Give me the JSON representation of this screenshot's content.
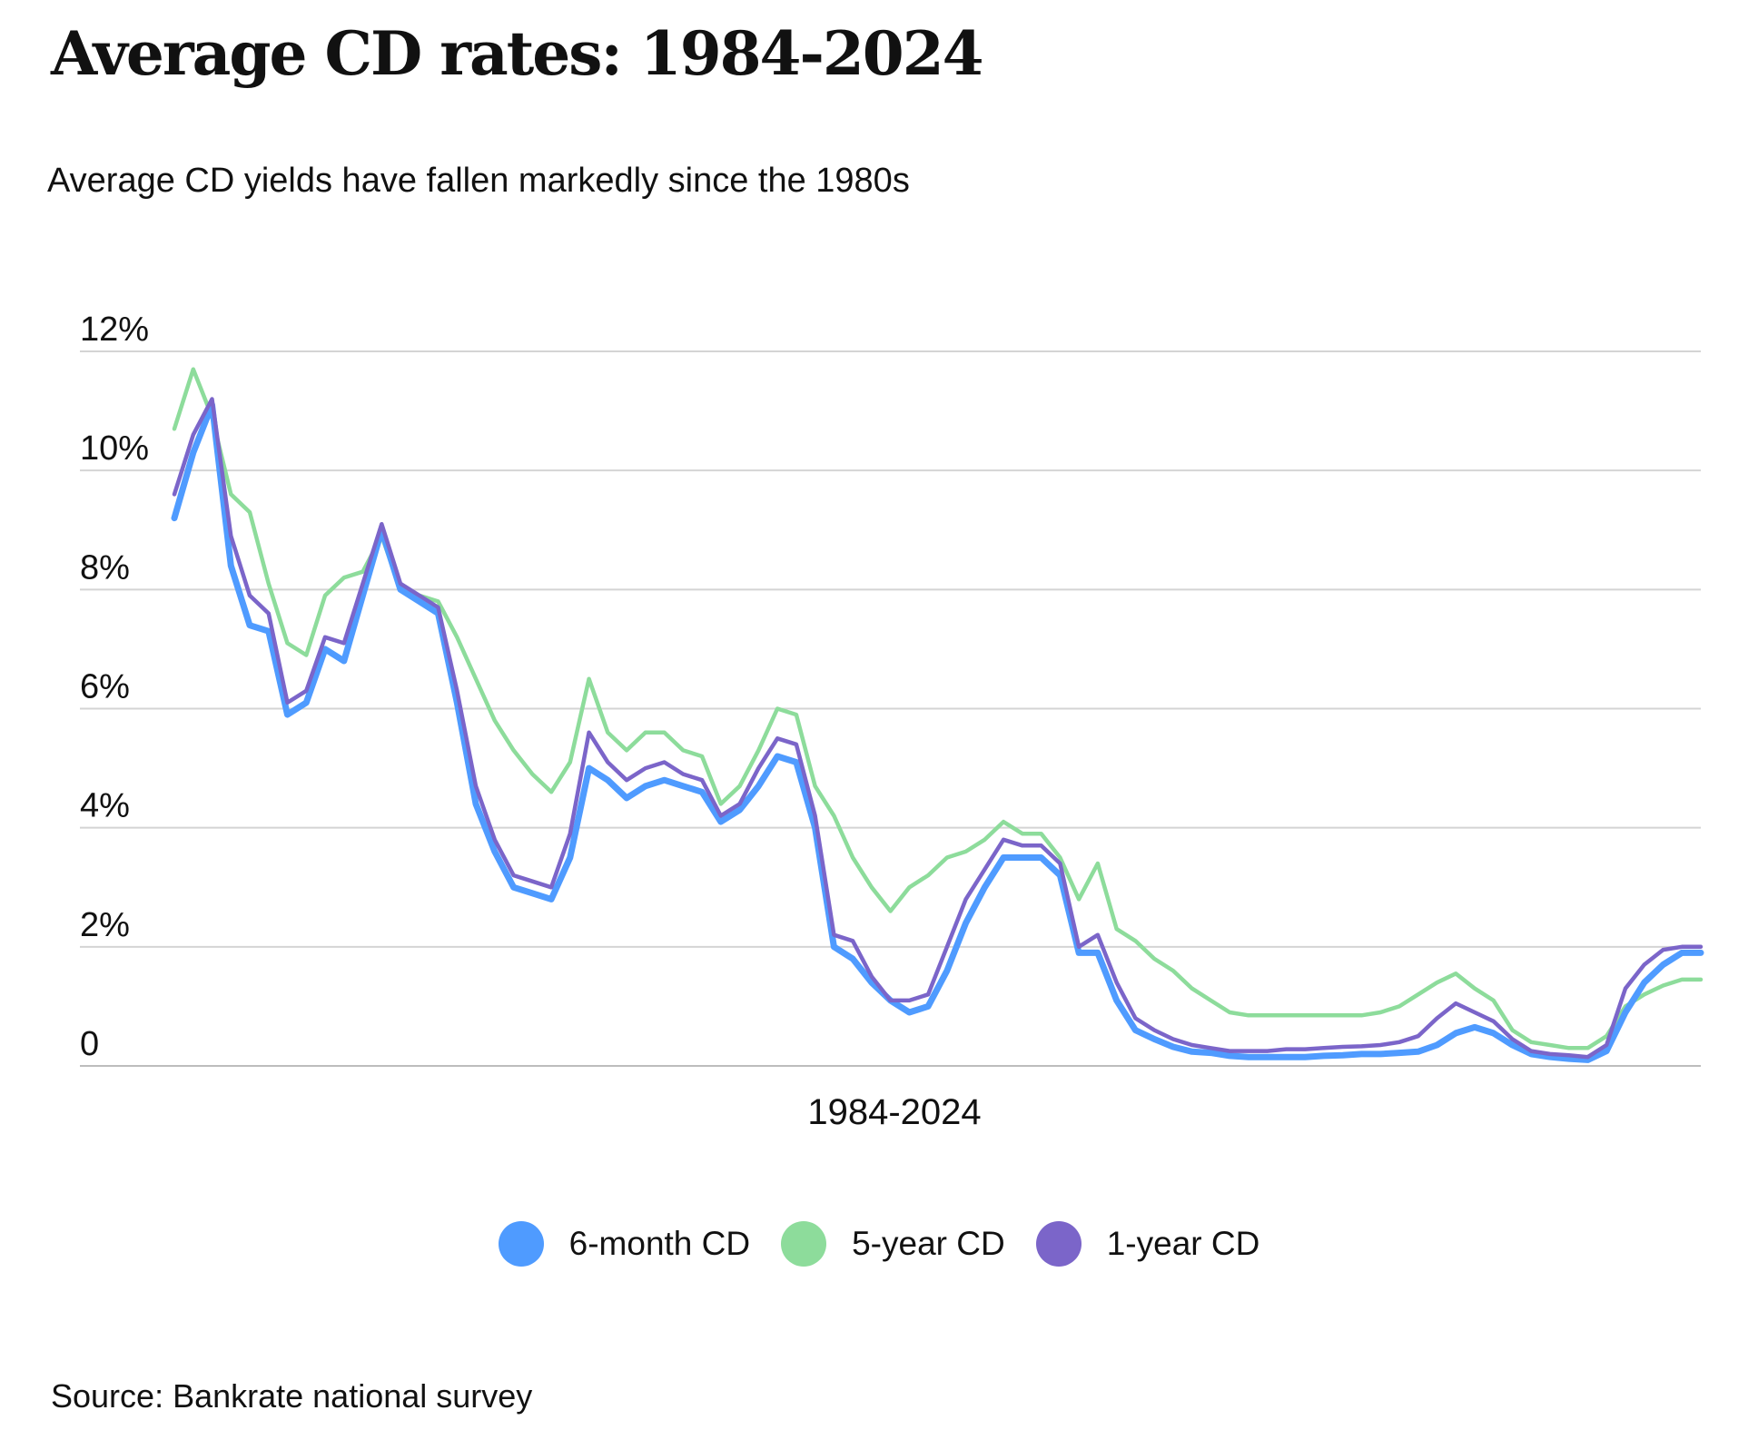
{
  "header": {
    "title": "Average CD rates: 1984-2024",
    "subtitle": "Average CD yields have fallen markedly since the 1980s"
  },
  "footer": {
    "source": "Source: Bankrate national survey"
  },
  "chart_data": {
    "type": "line",
    "title": "Average CD rates: 1984-2024",
    "subtitle": "Average CD yields have fallen markedly since the 1980s",
    "xlabel": "1984-2024",
    "ylabel": "",
    "x": [
      1984.0,
      1984.5,
      1985.0,
      1985.5,
      1986.0,
      1986.5,
      1987.0,
      1987.5,
      1988.0,
      1988.5,
      1989.0,
      1989.5,
      1990.0,
      1990.5,
      1991.0,
      1991.5,
      1992.0,
      1992.5,
      1993.0,
      1993.5,
      1994.0,
      1994.5,
      1995.0,
      1995.5,
      1996.0,
      1996.5,
      1997.0,
      1997.5,
      1998.0,
      1998.5,
      1999.0,
      1999.5,
      2000.0,
      2000.5,
      2001.0,
      2001.5,
      2002.0,
      2002.5,
      2003.0,
      2003.5,
      2004.0,
      2004.5,
      2005.0,
      2005.5,
      2006.0,
      2006.5,
      2007.0,
      2007.5,
      2008.0,
      2008.5,
      2009.0,
      2009.5,
      2010.0,
      2010.5,
      2011.0,
      2011.5,
      2012.0,
      2012.5,
      2013.0,
      2013.5,
      2014.0,
      2014.5,
      2015.0,
      2015.5,
      2016.0,
      2016.5,
      2017.0,
      2017.5,
      2018.0,
      2018.5,
      2019.0,
      2019.5,
      2020.0,
      2020.5,
      2021.0,
      2021.5,
      2022.0,
      2022.5,
      2023.0,
      2023.5,
      2024.0,
      2024.5
    ],
    "yticks": [
      "0",
      "2%",
      "4%",
      "6%",
      "8%",
      "10%",
      "12%"
    ],
    "ylim": [
      0,
      12
    ],
    "grid": true,
    "legend_position": "bottom",
    "series": [
      {
        "name": "6-month CD",
        "color": "#4f9bff",
        "values": [
          9.2,
          10.3,
          11.1,
          8.4,
          7.4,
          7.3,
          5.9,
          6.1,
          7.0,
          6.8,
          7.9,
          9.0,
          8.0,
          7.8,
          7.6,
          6.1,
          4.4,
          3.6,
          3.0,
          2.9,
          2.8,
          3.5,
          5.0,
          4.8,
          4.5,
          4.7,
          4.8,
          4.7,
          4.6,
          4.1,
          4.3,
          4.7,
          5.2,
          5.1,
          4.0,
          2.0,
          1.8,
          1.4,
          1.1,
          0.9,
          1.0,
          1.6,
          2.4,
          3.0,
          3.5,
          3.5,
          3.5,
          3.2,
          1.9,
          1.9,
          1.1,
          0.6,
          0.45,
          0.32,
          0.24,
          0.22,
          0.17,
          0.15,
          0.15,
          0.15,
          0.15,
          0.17,
          0.18,
          0.2,
          0.2,
          0.22,
          0.24,
          0.35,
          0.55,
          0.65,
          0.55,
          0.35,
          0.2,
          0.15,
          0.12,
          0.1,
          0.25,
          0.9,
          1.4,
          1.7,
          1.9,
          1.9
        ]
      },
      {
        "name": "5-year CD",
        "color": "#8ddc9b",
        "values": [
          10.7,
          11.7,
          10.9,
          9.6,
          9.3,
          8.1,
          7.1,
          6.9,
          7.9,
          8.2,
          8.3,
          8.9,
          8.0,
          7.9,
          7.8,
          7.2,
          6.5,
          5.8,
          5.3,
          4.9,
          4.6,
          5.1,
          6.5,
          5.6,
          5.3,
          5.6,
          5.6,
          5.3,
          5.2,
          4.4,
          4.7,
          5.3,
          6.0,
          5.9,
          4.7,
          4.2,
          3.5,
          3.0,
          2.6,
          3.0,
          3.2,
          3.5,
          3.6,
          3.8,
          4.1,
          3.9,
          3.9,
          3.5,
          2.8,
          3.4,
          2.3,
          2.1,
          1.8,
          1.6,
          1.3,
          1.1,
          0.9,
          0.85,
          0.85,
          0.85,
          0.85,
          0.85,
          0.85,
          0.85,
          0.9,
          1.0,
          1.2,
          1.4,
          1.55,
          1.3,
          1.1,
          0.6,
          0.4,
          0.35,
          0.3,
          0.3,
          0.5,
          1.0,
          1.2,
          1.35,
          1.45,
          1.45
        ]
      },
      {
        "name": "1-year CD",
        "color": "#7b65c9",
        "values": [
          9.6,
          10.6,
          11.2,
          8.9,
          7.9,
          7.6,
          6.1,
          6.3,
          7.2,
          7.1,
          8.1,
          9.1,
          8.1,
          7.9,
          7.7,
          6.3,
          4.7,
          3.8,
          3.2,
          3.1,
          3.0,
          3.9,
          5.6,
          5.1,
          4.8,
          5.0,
          5.1,
          4.9,
          4.8,
          4.2,
          4.4,
          5.0,
          5.5,
          5.4,
          4.2,
          2.2,
          2.1,
          1.5,
          1.1,
          1.1,
          1.2,
          2.0,
          2.8,
          3.3,
          3.8,
          3.7,
          3.7,
          3.4,
          2.0,
          2.2,
          1.4,
          0.8,
          0.6,
          0.45,
          0.35,
          0.3,
          0.25,
          0.25,
          0.25,
          0.28,
          0.28,
          0.3,
          0.32,
          0.33,
          0.35,
          0.4,
          0.5,
          0.8,
          1.05,
          0.9,
          0.75,
          0.45,
          0.25,
          0.2,
          0.18,
          0.15,
          0.35,
          1.3,
          1.7,
          1.95,
          2.0,
          2.0
        ]
      }
    ]
  }
}
